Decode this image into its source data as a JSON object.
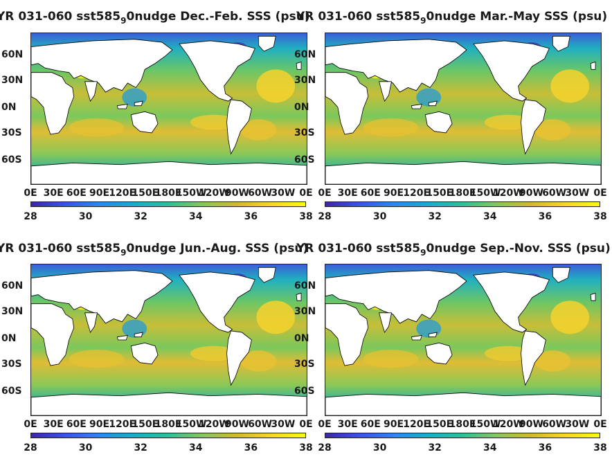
{
  "colorbar_ticks": [
    "28",
    "30",
    "32",
    "34",
    "36",
    "38"
  ],
  "lat_ticks": [
    "60N",
    "30N",
    "0N",
    "30S",
    "60S"
  ],
  "lon_ticks": [
    "0E",
    "30E",
    "60E",
    "90E",
    "120E",
    "150E",
    "180E",
    "150W",
    "120W",
    "90W",
    "60W",
    "30W",
    "0E"
  ],
  "colors": {
    "land": "#ffffff",
    "coast": "#000000"
  },
  "chart_data": [
    {
      "type": "heatmap",
      "title_pre": "YR 031-060 sst585",
      "title_sub": "9",
      "title_post": "0nudge Dec.-Feb. SSS (psu)",
      "colorbar_range": [
        28,
        38
      ],
      "colorbar_ticks": [
        28,
        30,
        32,
        34,
        36,
        38
      ]
    },
    {
      "type": "heatmap",
      "title_pre": "YR 031-060 sst585",
      "title_sub": "9",
      "title_post": "0nudge Mar.-May SSS (psu)",
      "colorbar_range": [
        28,
        38
      ],
      "colorbar_ticks": [
        28,
        30,
        32,
        34,
        36,
        38
      ]
    },
    {
      "type": "heatmap",
      "title_pre": "YR 031-060 sst585",
      "title_sub": "9",
      "title_post": "0nudge Jun.-Aug. SSS (psu)",
      "colorbar_range": [
        28,
        38
      ],
      "colorbar_ticks": [
        28,
        30,
        32,
        34,
        36,
        38
      ]
    },
    {
      "type": "heatmap",
      "title_pre": "YR 031-060 sst585",
      "title_sub": "9",
      "title_post": "0nudge Sep.-Nov. SSS (psu)",
      "colorbar_range": [
        28,
        38
      ],
      "colorbar_ticks": [
        28,
        30,
        32,
        34,
        36,
        38
      ]
    }
  ]
}
